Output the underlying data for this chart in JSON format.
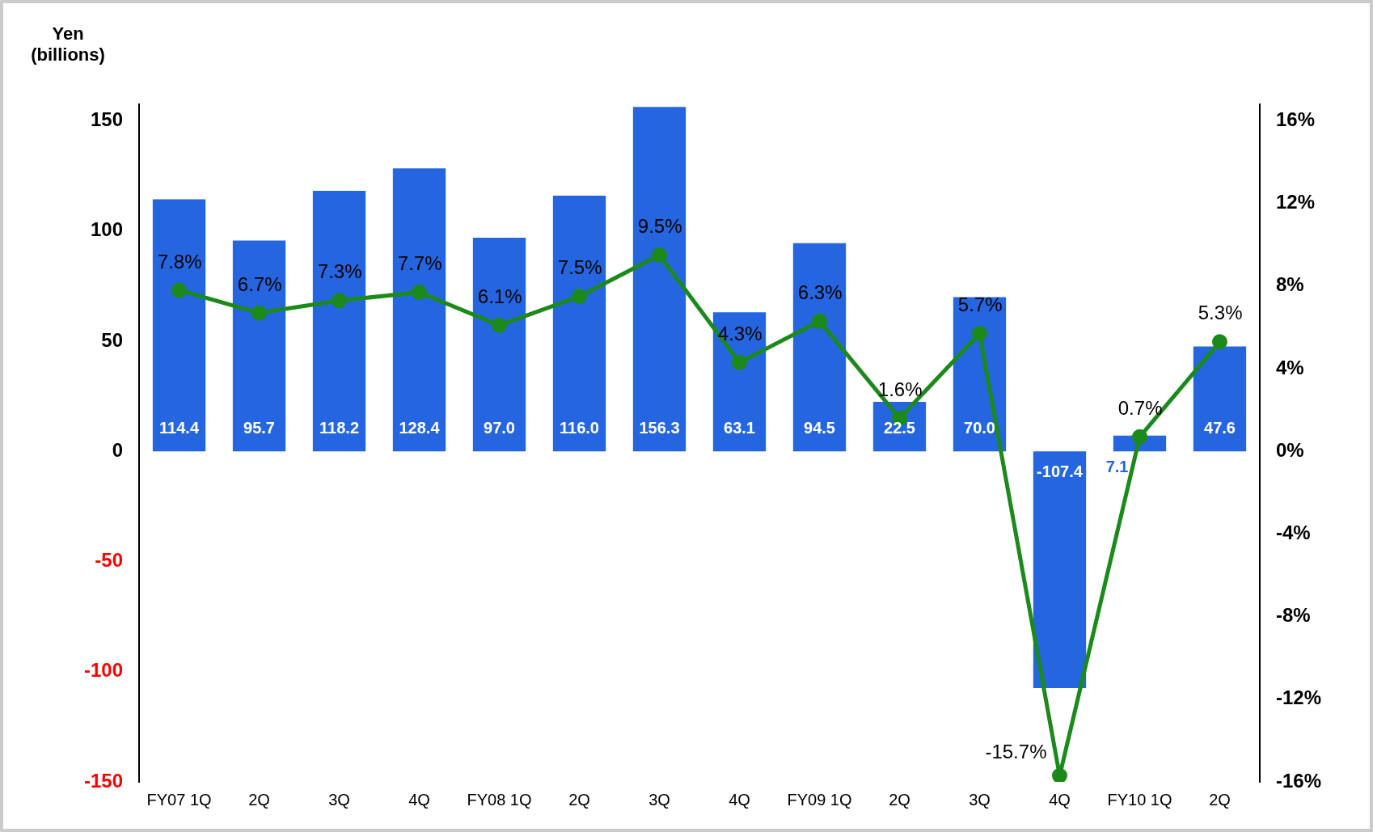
{
  "chart_data": {
    "type": "bar",
    "ylabel": "Yen\n(billions)",
    "categories": [
      "FY07 1Q",
      "2Q",
      "3Q",
      "4Q",
      "FY08 1Q",
      "2Q",
      "3Q",
      "4Q",
      "FY09 1Q",
      "2Q",
      "3Q",
      "4Q",
      "FY10 1Q",
      "2Q"
    ],
    "series": [
      {
        "color": "#2566e0",
        "values": [
          114.4,
          95.7,
          118.2,
          128.4,
          97.0,
          116.0,
          156.3,
          63.1,
          94.5,
          22.5,
          70.0,
          -107.4,
          7.1,
          47.6
        ],
        "value_labels": [
          "114.4",
          "95.7",
          "118.2",
          "128.4",
          "97.0",
          "116.0",
          "156.3",
          "63.1",
          "94.5",
          "22.5",
          "70.0",
          "-107.4",
          "7.1",
          "47.6"
        ]
      },
      {
        "type": "line",
        "axis": "y2",
        "color": "#1b8a1b",
        "values": [
          7.8,
          6.7,
          7.3,
          7.7,
          6.1,
          7.5,
          9.5,
          4.3,
          6.3,
          1.6,
          5.7,
          -15.7,
          0.7,
          5.3
        ],
        "value_labels": [
          "7.8%",
          "6.7%",
          "7.3%",
          "7.7%",
          "6.1%",
          "7.5%",
          "9.5%",
          "4.3%",
          "6.3%",
          "1.6%",
          "5.7%",
          "-15.7%",
          "0.7%",
          "5.3%"
        ]
      }
    ],
    "ylim": [
      -150,
      157.5
    ],
    "yticks": [
      -150,
      -100,
      -50,
      0,
      50,
      100,
      150
    ],
    "y2lim": [
      -16,
      16.8
    ],
    "y2ticks": [
      {
        "value": -16,
        "label": "-16%"
      },
      {
        "value": -12,
        "label": "-12%"
      },
      {
        "value": -8,
        "label": "-8%"
      },
      {
        "value": -4,
        "label": "-4%"
      },
      {
        "value": 0,
        "label": "0%"
      },
      {
        "value": 4,
        "label": "4%"
      },
      {
        "value": 8,
        "label": "8%"
      },
      {
        "value": 12,
        "label": "12%"
      },
      {
        "value": 16,
        "label": "16%"
      }
    ],
    "grid": false,
    "legend": false,
    "marker": "circle",
    "line_style": "solid"
  }
}
